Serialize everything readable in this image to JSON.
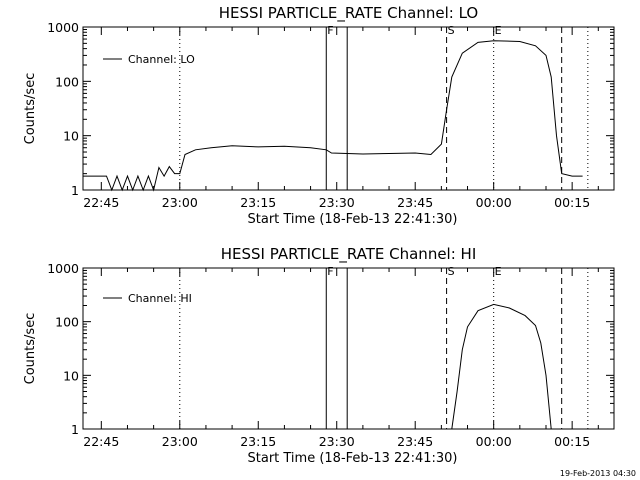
{
  "footer_timestamp": "19-Feb-2013 04:30",
  "chart_data": [
    {
      "type": "line",
      "title": "HESSI PARTICLE_RATE Channel: LO",
      "xlabel": "Start Time (18-Feb-13 22:41:30)",
      "ylabel": "Counts/sec",
      "yscale": "log",
      "ylim": [
        1,
        1000
      ],
      "xlim": [
        "22:41:30",
        "00:23:00"
      ],
      "x_ticks": [
        "22:45",
        "23:00",
        "23:15",
        "23:30",
        "23:45",
        "00:00",
        "00:15"
      ],
      "y_ticks": [
        "1",
        "10",
        "100",
        "1000"
      ],
      "legend": "top-left",
      "series": [
        {
          "name": "Channel: LO",
          "points": [
            [
              "22:41:30",
              1.8
            ],
            [
              "22:46:00",
              1.8
            ],
            [
              "22:47:00",
              1.0
            ],
            [
              "22:48:00",
              1.8
            ],
            [
              "22:49:00",
              1.0
            ],
            [
              "22:50:00",
              1.8
            ],
            [
              "22:51:00",
              1.0
            ],
            [
              "22:52:00",
              1.8
            ],
            [
              "22:53:00",
              1.0
            ],
            [
              "22:54:00",
              1.8
            ],
            [
              "22:55:00",
              1.0
            ],
            [
              "22:56:00",
              2.6
            ],
            [
              "22:57:00",
              1.8
            ],
            [
              "22:58:00",
              2.7
            ],
            [
              "22:59:00",
              2.0
            ],
            [
              "23:00:00",
              2.0
            ],
            [
              "23:01:00",
              4.5
            ],
            [
              "23:03:00",
              5.5
            ],
            [
              "23:06:00",
              6.0
            ],
            [
              "23:10:00",
              6.5
            ],
            [
              "23:15:00",
              6.2
            ],
            [
              "23:20:00",
              6.4
            ],
            [
              "23:25:00",
              6.0
            ],
            [
              "23:28:00",
              5.5
            ],
            [
              "23:29:00",
              4.8
            ],
            [
              "23:35:00",
              4.6
            ],
            [
              "23:40:00",
              4.7
            ],
            [
              "23:45:00",
              4.8
            ],
            [
              "23:48:00",
              4.5
            ],
            [
              "23:50:00",
              7.0
            ],
            [
              "23:51:00",
              30
            ],
            [
              "23:52:00",
              120
            ],
            [
              "23:54:00",
              330
            ],
            [
              "23:57:00",
              520
            ],
            [
              "00:00:00",
              560
            ],
            [
              "00:05:00",
              540
            ],
            [
              "00:08:00",
              450
            ],
            [
              "00:10:00",
              300
            ],
            [
              "00:11:00",
              120
            ],
            [
              "00:12:00",
              10
            ],
            [
              "00:13:00",
              2.0
            ],
            [
              "00:15:00",
              1.8
            ],
            [
              "00:17:00",
              1.8
            ]
          ]
        }
      ],
      "markers": [
        {
          "label": "",
          "time": "23:00:00",
          "style": "dotted"
        },
        {
          "label": "F",
          "time": "23:28:00",
          "style": "solid"
        },
        {
          "label": "",
          "time": "23:32:00",
          "style": "solid"
        },
        {
          "label": "S",
          "time": "23:51:00",
          "style": "dashed"
        },
        {
          "label": "E",
          "time": "00:00:00",
          "style": "dotted"
        },
        {
          "label": "",
          "time": "00:13:00",
          "style": "dashed"
        },
        {
          "label": "",
          "time": "00:18:00",
          "style": "dotted"
        }
      ]
    },
    {
      "type": "line",
      "title": "HESSI PARTICLE_RATE Channel: HI",
      "xlabel": "Start Time (18-Feb-13 22:41:30)",
      "ylabel": "Counts/sec",
      "yscale": "log",
      "ylim": [
        1,
        1000
      ],
      "xlim": [
        "22:41:30",
        "00:23:00"
      ],
      "x_ticks": [
        "22:45",
        "23:00",
        "23:15",
        "23:30",
        "23:45",
        "00:00",
        "00:15"
      ],
      "y_ticks": [
        "1",
        "10",
        "100",
        "1000"
      ],
      "legend": "top-left",
      "series": [
        {
          "name": "Channel: HI",
          "points": [
            [
              "23:52:00",
              1.0
            ],
            [
              "23:53:00",
              5
            ],
            [
              "23:54:00",
              30
            ],
            [
              "23:55:00",
              80
            ],
            [
              "23:57:00",
              160
            ],
            [
              "00:00:00",
              210
            ],
            [
              "00:03:00",
              180
            ],
            [
              "00:06:00",
              130
            ],
            [
              "00:08:00",
              85
            ],
            [
              "00:09:00",
              40
            ],
            [
              "00:10:00",
              10
            ],
            [
              "00:11:00",
              1.0
            ]
          ]
        }
      ],
      "markers": [
        {
          "label": "",
          "time": "23:00:00",
          "style": "dotted"
        },
        {
          "label": "F",
          "time": "23:28:00",
          "style": "solid"
        },
        {
          "label": "",
          "time": "23:32:00",
          "style": "solid"
        },
        {
          "label": "S",
          "time": "23:51:00",
          "style": "dashed"
        },
        {
          "label": "E",
          "time": "00:00:00",
          "style": "dotted"
        },
        {
          "label": "",
          "time": "00:13:00",
          "style": "dashed"
        },
        {
          "label": "",
          "time": "00:18:00",
          "style": "dotted"
        }
      ]
    }
  ]
}
